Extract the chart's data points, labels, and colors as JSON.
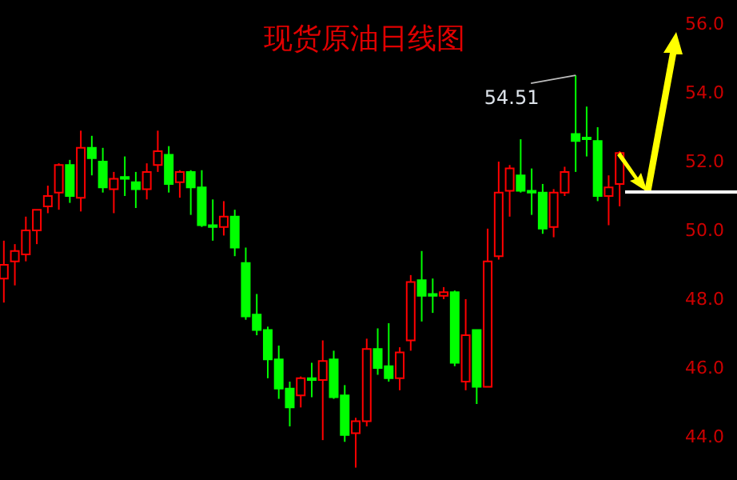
{
  "chart_data": {
    "type": "candlestick",
    "title": "现货原油日线图",
    "categories": [
      null,
      null,
      null,
      null,
      null,
      null,
      null,
      null,
      null,
      null,
      null,
      null,
      null,
      null,
      null,
      null,
      null,
      null,
      null,
      null,
      null,
      null,
      null,
      null,
      null,
      null,
      null,
      null,
      null,
      null,
      null,
      null,
      null,
      null,
      null,
      null,
      null,
      null,
      null,
      null,
      null,
      null,
      null,
      null,
      null,
      null,
      null,
      null,
      null,
      null,
      null,
      null,
      null,
      null,
      null,
      null,
      null
    ],
    "ohlc": [
      [
        48.6,
        49.7,
        47.9,
        49.0
      ],
      [
        49.1,
        49.6,
        48.4,
        49.4
      ],
      [
        49.3,
        50.4,
        49.1,
        50.0
      ],
      [
        50.0,
        50.6,
        49.6,
        50.6
      ],
      [
        50.7,
        51.3,
        50.5,
        51.0
      ],
      [
        51.1,
        51.95,
        50.6,
        51.9
      ],
      [
        51.9,
        52.05,
        50.8,
        51.0
      ],
      [
        50.95,
        52.9,
        50.55,
        52.4
      ],
      [
        52.4,
        52.75,
        51.6,
        52.1
      ],
      [
        52.0,
        52.4,
        51.1,
        51.25
      ],
      [
        51.2,
        51.7,
        50.5,
        51.5
      ],
      [
        51.55,
        52.15,
        51.0,
        51.5
      ],
      [
        51.4,
        51.7,
        50.65,
        51.2
      ],
      [
        51.2,
        51.95,
        50.9,
        51.7
      ],
      [
        51.9,
        52.9,
        51.7,
        52.3
      ],
      [
        52.2,
        52.45,
        51.1,
        51.35
      ],
      [
        51.4,
        51.75,
        50.95,
        51.7
      ],
      [
        51.7,
        51.75,
        50.45,
        51.25
      ],
      [
        51.25,
        51.75,
        50.1,
        50.15
      ],
      [
        50.15,
        50.9,
        49.7,
        50.1
      ],
      [
        50.1,
        50.85,
        49.85,
        50.4
      ],
      [
        50.4,
        50.6,
        49.25,
        49.5
      ],
      [
        49.05,
        49.5,
        47.4,
        47.5
      ],
      [
        47.55,
        48.15,
        46.95,
        47.1
      ],
      [
        47.1,
        47.2,
        45.7,
        46.25
      ],
      [
        46.25,
        46.65,
        45.1,
        45.4
      ],
      [
        45.4,
        45.6,
        44.3,
        44.85
      ],
      [
        45.2,
        45.75,
        44.85,
        45.7
      ],
      [
        45.7,
        46.15,
        45.15,
        45.65
      ],
      [
        45.65,
        46.8,
        43.9,
        46.2
      ],
      [
        46.25,
        46.5,
        45.1,
        45.15
      ],
      [
        45.2,
        45.5,
        43.85,
        44.05
      ],
      [
        44.1,
        44.55,
        43.1,
        44.45
      ],
      [
        44.45,
        46.85,
        44.3,
        46.55
      ],
      [
        46.55,
        47.15,
        45.8,
        46.0
      ],
      [
        46.05,
        47.3,
        45.6,
        45.7
      ],
      [
        45.7,
        46.6,
        45.35,
        46.45
      ],
      [
        46.8,
        48.7,
        46.5,
        48.5
      ],
      [
        48.55,
        49.4,
        47.35,
        48.1
      ],
      [
        48.15,
        48.6,
        47.6,
        48.1
      ],
      [
        48.1,
        48.35,
        48.0,
        48.2
      ],
      [
        48.2,
        48.25,
        46.05,
        46.15
      ],
      [
        45.6,
        48.0,
        45.35,
        46.95
      ],
      [
        47.1,
        47.1,
        44.95,
        45.45
      ],
      [
        45.45,
        50.05,
        45.45,
        49.1
      ],
      [
        49.25,
        52.0,
        49.15,
        51.1
      ],
      [
        51.15,
        51.9,
        50.4,
        51.8
      ],
      [
        51.6,
        52.65,
        51.1,
        51.15
      ],
      [
        51.15,
        51.8,
        50.45,
        51.1
      ],
      [
        51.1,
        51.35,
        49.9,
        50.05
      ],
      [
        50.1,
        51.2,
        49.8,
        51.1
      ],
      [
        51.1,
        51.85,
        51.0,
        51.7
      ],
      [
        52.8,
        54.51,
        51.7,
        52.6
      ],
      [
        52.7,
        53.6,
        52.15,
        52.65
      ],
      [
        52.6,
        53.0,
        50.85,
        51.0
      ],
      [
        51.0,
        51.6,
        50.15,
        51.25
      ],
      [
        51.35,
        52.3,
        50.7,
        52.25
      ]
    ],
    "colors": [
      "#ff0000",
      "#ff0000",
      "#ff0000",
      "#ff0000",
      "#ff0000",
      "#ff0000",
      "#00ff00",
      "#ff0000",
      "#00ff00",
      "#00ff00",
      "#ff0000",
      "#00ff00",
      "#00ff00",
      "#ff0000",
      "#ff0000",
      "#00ff00",
      "#ff0000",
      "#00ff00",
      "#00ff00",
      "#00ff00",
      "#ff0000",
      "#00ff00",
      "#00ff00",
      "#00ff00",
      "#00ff00",
      "#00ff00",
      "#00ff00",
      "#ff0000",
      "#00ff00",
      "#ff0000",
      "#00ff00",
      "#00ff00",
      "#ff0000",
      "#ff0000",
      "#00ff00",
      "#00ff00",
      "#ff0000",
      "#ff0000",
      "#00ff00",
      "#00ff00",
      "#ff0000",
      "#00ff00",
      "#ff0000",
      "#00ff00",
      "#ff0000",
      "#ff0000",
      "#ff0000",
      "#00ff00",
      "#00ff00",
      "#00ff00",
      "#ff0000",
      "#ff0000",
      "#00ff00",
      "#00ff00",
      "#00ff00",
      "#ff0000",
      "#ff0000"
    ],
    "ylim": [
      42.74,
      56.7
    ],
    "yticks": [
      {
        "value": 44,
        "label": "44.0"
      },
      {
        "value": 46,
        "label": "46.0"
      },
      {
        "value": 48,
        "label": "48.0"
      },
      {
        "value": 50,
        "label": "50.0"
      },
      {
        "value": 52,
        "label": "52.0"
      },
      {
        "value": 54,
        "label": "54.0"
      },
      {
        "value": 56,
        "label": "56.0"
      }
    ],
    "annotations": [
      "54.51"
    ],
    "grid": false
  }
}
